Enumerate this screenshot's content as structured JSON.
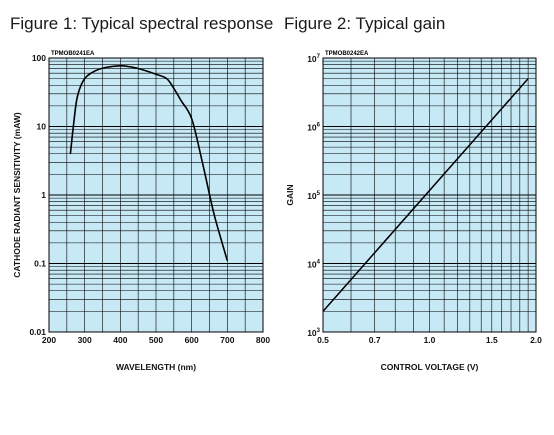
{
  "titles": {
    "fig1": "Figure 1: Typical spectral response",
    "fig2": "Figure 2: Typical gain"
  },
  "colors": {
    "plot_bg": "#c7e8f5",
    "grid": "#000000",
    "curve": "#000000"
  },
  "chart_data": [
    {
      "type": "line",
      "title": "Figure 1: Typical spectral response",
      "code": "TPMOB0241EA",
      "xlabel": "WAVELENGTH (nm)",
      "ylabel": "CATHODE RADIANT SENSITIVITY (mAW)",
      "xlim": [
        200,
        800
      ],
      "ylim": [
        0.01,
        100
      ],
      "yscale": "log",
      "grid": true,
      "xticks": [
        200,
        300,
        400,
        500,
        600,
        700,
        800
      ],
      "yticks": [
        {
          "value": 0.01,
          "label": "0.01"
        },
        {
          "value": 0.1,
          "label": "0.1"
        },
        {
          "value": 1,
          "label": "1"
        },
        {
          "value": 10,
          "label": "10"
        },
        {
          "value": 100,
          "label": "100"
        }
      ],
      "series": [
        {
          "x": [
            260,
            270,
            280,
            300,
            330,
            360,
            400,
            430,
            460,
            500,
            530,
            550,
            570,
            600,
            630,
            660,
            680,
            700
          ],
          "y": [
            4,
            12,
            28,
            50,
            65,
            73,
            77,
            74,
            68,
            58,
            50,
            36,
            24,
            13,
            3,
            0.6,
            0.25,
            0.11
          ]
        }
      ]
    },
    {
      "type": "line",
      "title": "Figure 2: Typical gain",
      "code": "TPMOB0242EA",
      "xlabel": "CONTROL VOLTAGE (V)",
      "ylabel": "GAIN",
      "xlim": [
        0.5,
        2.0
      ],
      "ylim": [
        1000,
        10000000
      ],
      "xscale": "log",
      "yscale": "log",
      "grid": true,
      "xticks": [
        {
          "value": 0.5,
          "label": "0.5"
        },
        {
          "value": 0.7,
          "label": "0.7"
        },
        {
          "value": 1.0,
          "label": "1.0"
        },
        {
          "value": 1.5,
          "label": "1.5"
        },
        {
          "value": 2.0,
          "label": "2.0"
        }
      ],
      "yticks": [
        {
          "value": 1000,
          "base": "10",
          "exp": "3"
        },
        {
          "value": 10000,
          "base": "10",
          "exp": "4"
        },
        {
          "value": 100000,
          "base": "10",
          "exp": "5"
        },
        {
          "value": 1000000,
          "base": "10",
          "exp": "6"
        },
        {
          "value": 10000000,
          "base": "10",
          "exp": "7"
        }
      ],
      "series": [
        {
          "x": [
            0.5,
            1.9
          ],
          "y": [
            2000,
            5000000
          ]
        }
      ]
    }
  ]
}
